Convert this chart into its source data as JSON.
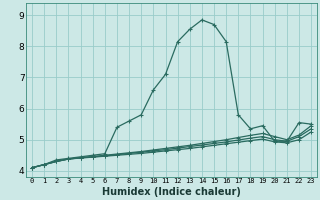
{
  "xlabel": "Humidex (Indice chaleur)",
  "bg_color": "#cce8e6",
  "grid_color": "#99ccca",
  "line_color": "#2a6b60",
  "xlim": [
    -0.5,
    23.5
  ],
  "ylim": [
    3.8,
    9.4
  ],
  "xticks": [
    0,
    1,
    2,
    3,
    4,
    5,
    6,
    7,
    8,
    9,
    10,
    11,
    12,
    13,
    14,
    15,
    16,
    17,
    18,
    19,
    20,
    21,
    22,
    23
  ],
  "yticks": [
    4,
    5,
    6,
    7,
    8,
    9
  ],
  "line1_y": [
    4.1,
    4.2,
    4.35,
    4.4,
    4.45,
    4.5,
    4.55,
    5.4,
    5.6,
    5.8,
    6.6,
    7.1,
    8.15,
    8.55,
    8.85,
    8.7,
    8.15,
    5.8,
    5.35,
    5.45,
    4.95,
    4.95,
    5.55,
    5.5
  ],
  "line2_y": [
    4.1,
    4.2,
    4.3,
    4.38,
    4.42,
    4.46,
    4.5,
    4.54,
    4.58,
    4.62,
    4.67,
    4.72,
    4.77,
    4.82,
    4.88,
    4.94,
    5.0,
    5.07,
    5.14,
    5.2,
    5.1,
    5.0,
    5.15,
    5.45
  ],
  "line3_y": [
    4.1,
    4.2,
    4.3,
    4.38,
    4.42,
    4.45,
    4.48,
    4.52,
    4.56,
    4.6,
    4.64,
    4.68,
    4.73,
    4.78,
    4.83,
    4.88,
    4.93,
    4.99,
    5.05,
    5.1,
    5.0,
    4.95,
    5.1,
    5.35
  ],
  "line4_y": [
    4.1,
    4.2,
    4.3,
    4.38,
    4.41,
    4.44,
    4.47,
    4.5,
    4.53,
    4.56,
    4.6,
    4.64,
    4.68,
    4.72,
    4.77,
    4.82,
    4.87,
    4.92,
    4.97,
    5.02,
    4.93,
    4.9,
    5.0,
    5.25
  ]
}
